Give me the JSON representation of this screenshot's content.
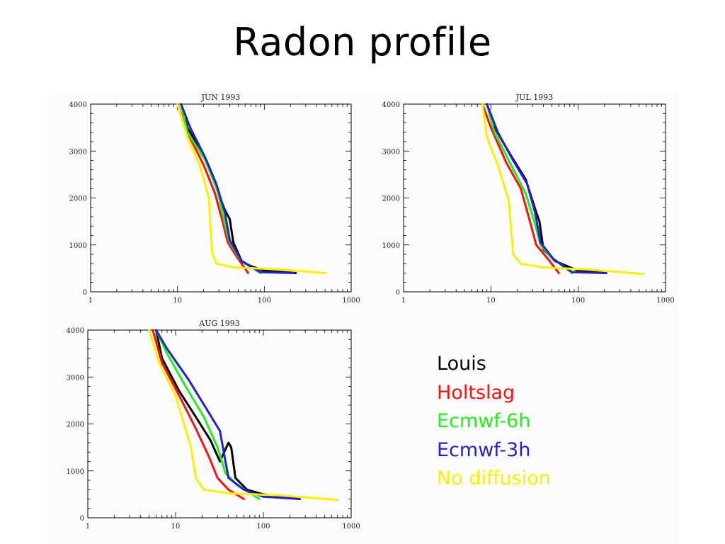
{
  "title": "Radon profile",
  "legend": [
    {
      "label": "Louis",
      "color": "#000000"
    },
    {
      "label": "Holtslag",
      "color": "#ff1010"
    },
    {
      "label": "Ecmwf-6h",
      "color": "#22ee22"
    },
    {
      "label": "Ecmwf-3h",
      "color": "#2222cc"
    },
    {
      "label": "No diffusion",
      "color": "#ffee00"
    }
  ],
  "chart_data": [
    {
      "type": "line",
      "title": "JUN 1993",
      "x_scale": "log",
      "xlim": [
        1,
        1000
      ],
      "ylim": [
        0,
        4000
      ],
      "x_ticks": [
        "1",
        "10",
        "100",
        "1000"
      ],
      "y_ticks": [
        "0",
        "1000",
        "2000",
        "3000",
        "4000"
      ],
      "series": [
        {
          "name": "Louis",
          "color": "#000000",
          "points": [
            [
              11,
              4000
            ],
            [
              13,
              3500
            ],
            [
              20,
              2900
            ],
            [
              27,
              2300
            ],
            [
              35,
              1750
            ],
            [
              40,
              1550
            ],
            [
              44,
              1050
            ],
            [
              55,
              650
            ],
            [
              70,
              550
            ],
            [
              100,
              450
            ],
            [
              230,
              400
            ]
          ]
        },
        {
          "name": "Holtslag",
          "color": "#ff1010",
          "points": [
            [
              10,
              4000
            ],
            [
              13,
              3400
            ],
            [
              20,
              2700
            ],
            [
              27,
              2100
            ],
            [
              33,
              1500
            ],
            [
              38,
              1050
            ],
            [
              48,
              750
            ],
            [
              65,
              400
            ]
          ]
        },
        {
          "name": "Ecmwf-6h",
          "color": "#22ee22",
          "points": [
            [
              11,
              4000
            ],
            [
              13,
              3400
            ],
            [
              21,
              2800
            ],
            [
              29,
              2150
            ],
            [
              35,
              1450
            ],
            [
              40,
              1050
            ],
            [
              52,
              700
            ],
            [
              90,
              400
            ]
          ]
        },
        {
          "name": "Ecmwf-3h",
          "color": "#2222cc",
          "points": [
            [
              11,
              4000
            ],
            [
              14,
              3500
            ],
            [
              21,
              2850
            ],
            [
              28,
              2300
            ],
            [
              35,
              1700
            ],
            [
              40,
              1100
            ],
            [
              55,
              650
            ],
            [
              90,
              420
            ],
            [
              220,
              400
            ]
          ]
        },
        {
          "name": "No diffusion",
          "color": "#ffee00",
          "points": [
            [
              10,
              4000
            ],
            [
              13,
              3300
            ],
            [
              18,
              2700
            ],
            [
              23,
              2000
            ],
            [
              25,
              850
            ],
            [
              28,
              600
            ],
            [
              45,
              520
            ],
            [
              140,
              480
            ],
            [
              510,
              400
            ]
          ]
        }
      ]
    },
    {
      "type": "line",
      "title": "JUL 1993",
      "x_scale": "log",
      "xlim": [
        1,
        1000
      ],
      "ylim": [
        0,
        4000
      ],
      "x_ticks": [
        "1",
        "10",
        "100",
        "1000"
      ],
      "y_ticks": [
        "0",
        "1000",
        "2000",
        "3000",
        "4000"
      ],
      "series": [
        {
          "name": "Louis",
          "color": "#000000",
          "points": [
            [
              9,
              4000
            ],
            [
              11,
              3500
            ],
            [
              17,
              2900
            ],
            [
              25,
              2400
            ],
            [
              33,
              1700
            ],
            [
              36,
              1500
            ],
            [
              40,
              900
            ],
            [
              55,
              650
            ],
            [
              100,
              450
            ],
            [
              200,
              400
            ]
          ]
        },
        {
          "name": "Holtslag",
          "color": "#ff1010",
          "points": [
            [
              8,
              4000
            ],
            [
              10,
              3500
            ],
            [
              15,
              2750
            ],
            [
              22,
              2200
            ],
            [
              28,
              1500
            ],
            [
              33,
              1000
            ],
            [
              45,
              700
            ],
            [
              60,
              400
            ]
          ]
        },
        {
          "name": "Ecmwf-6h",
          "color": "#22ee22",
          "points": [
            [
              9,
              4000
            ],
            [
              11,
              3400
            ],
            [
              17,
              2700
            ],
            [
              25,
              2100
            ],
            [
              32,
              1450
            ],
            [
              37,
              1000
            ],
            [
              48,
              750
            ],
            [
              85,
              400
            ]
          ]
        },
        {
          "name": "Ecmwf-3h",
          "color": "#2222cc",
          "points": [
            [
              9,
              4000
            ],
            [
              12,
              3400
            ],
            [
              18,
              2800
            ],
            [
              26,
              2300
            ],
            [
              32,
              1700
            ],
            [
              37,
              1050
            ],
            [
              52,
              700
            ],
            [
              85,
              420
            ],
            [
              210,
              400
            ]
          ]
        },
        {
          "name": "No diffusion",
          "color": "#ffee00",
          "points": [
            [
              8,
              4000
            ],
            [
              9,
              3300
            ],
            [
              12,
              2700
            ],
            [
              16,
              1950
            ],
            [
              18,
              800
            ],
            [
              22,
              600
            ],
            [
              40,
              520
            ],
            [
              120,
              480
            ],
            [
              560,
              380
            ]
          ]
        }
      ]
    },
    {
      "type": "line",
      "title": "AUG 1993",
      "x_scale": "log",
      "xlim": [
        1,
        1000
      ],
      "ylim": [
        0,
        4000
      ],
      "x_ticks": [
        "1",
        "10",
        "100",
        "1000"
      ],
      "y_ticks": [
        "0",
        "1000",
        "2000",
        "3000",
        "4000"
      ],
      "series": [
        {
          "name": "Louis",
          "color": "#000000",
          "points": [
            [
              6,
              4000
            ],
            [
              7,
              3400
            ],
            [
              11,
              2700
            ],
            [
              17,
              2150
            ],
            [
              25,
              1650
            ],
            [
              32,
              1200
            ],
            [
              40,
              1600
            ],
            [
              43,
              1500
            ],
            [
              48,
              850
            ],
            [
              65,
              600
            ],
            [
              100,
              500
            ],
            [
              250,
              400
            ]
          ]
        },
        {
          "name": "Holtslag",
          "color": "#ff1010",
          "points": [
            [
              5.5,
              4000
            ],
            [
              7,
              3300
            ],
            [
              11,
              2600
            ],
            [
              17,
              1900
            ],
            [
              24,
              1300
            ],
            [
              30,
              850
            ],
            [
              40,
              600
            ],
            [
              60,
              400
            ]
          ]
        },
        {
          "name": "Ecmwf-6h",
          "color": "#22ee22",
          "points": [
            [
              6,
              4000
            ],
            [
              8,
              3500
            ],
            [
              13,
              2800
            ],
            [
              21,
              2150
            ],
            [
              30,
              1500
            ],
            [
              37,
              950
            ],
            [
              50,
              700
            ],
            [
              90,
              400
            ]
          ]
        },
        {
          "name": "Ecmwf-3h",
          "color": "#2222cc",
          "points": [
            [
              6,
              4000
            ],
            [
              8,
              3600
            ],
            [
              14,
              2950
            ],
            [
              22,
              2350
            ],
            [
              32,
              1850
            ],
            [
              40,
              850
            ],
            [
              60,
              600
            ],
            [
              100,
              450
            ],
            [
              260,
              400
            ]
          ]
        },
        {
          "name": "No diffusion",
          "color": "#ffee00",
          "points": [
            [
              5,
              4000
            ],
            [
              6.5,
              3300
            ],
            [
              10,
              2600
            ],
            [
              15,
              1500
            ],
            [
              17,
              850
            ],
            [
              21,
              600
            ],
            [
              40,
              520
            ],
            [
              150,
              480
            ],
            [
              700,
              380
            ]
          ]
        }
      ]
    }
  ]
}
